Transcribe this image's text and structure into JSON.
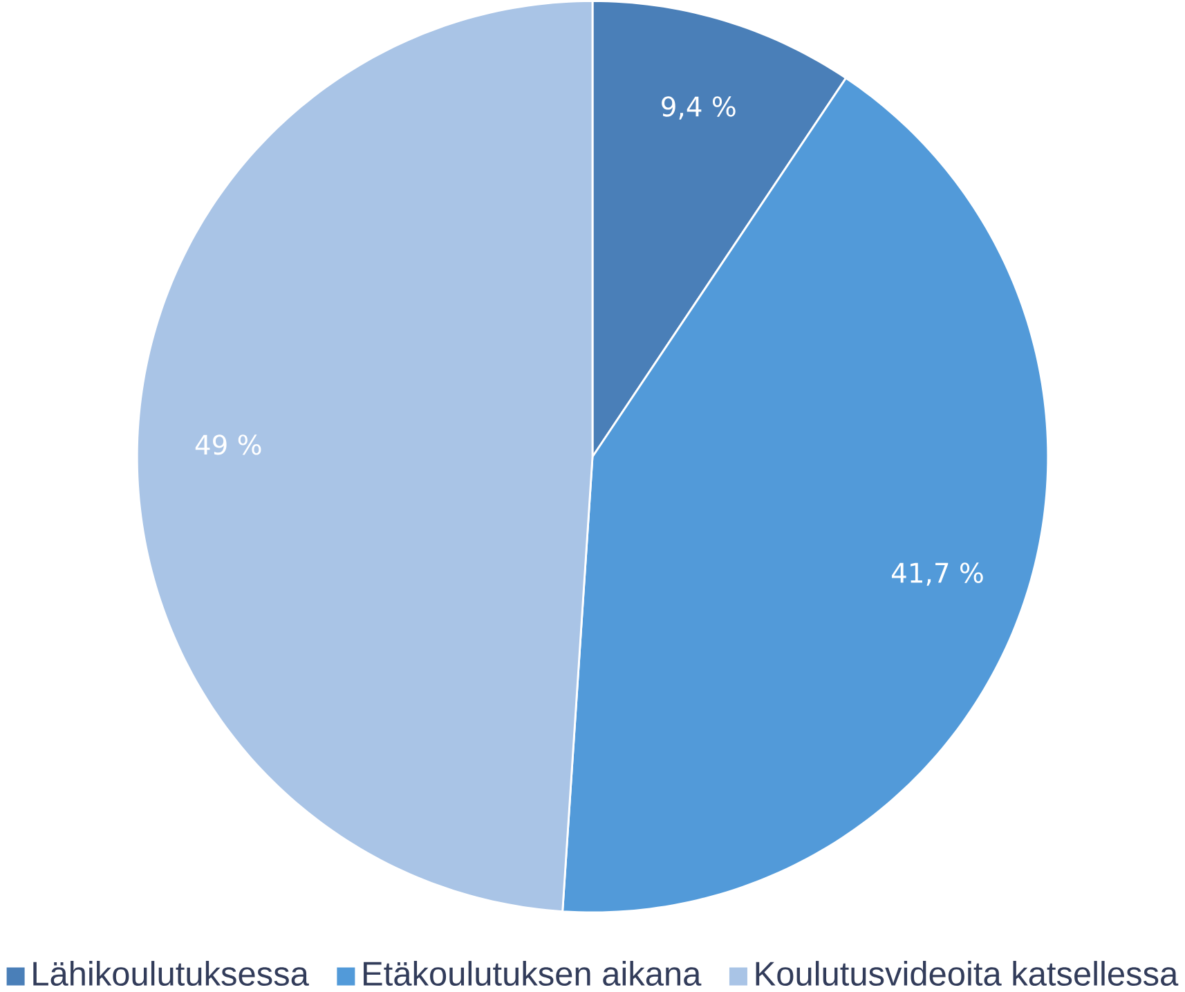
{
  "chart_data": {
    "type": "pie",
    "categories": [
      "Lähikoulutuksessa",
      "Etäkoulutuksen aikana",
      "Koulutusvideoita katsellessa"
    ],
    "values": [
      9.4,
      41.7,
      49
    ],
    "value_labels": [
      "9,4 %",
      "41,7 %",
      "49 %"
    ],
    "colors": [
      "#4a7fb8",
      "#529ad9",
      "#a9c4e6"
    ],
    "legend": "bottom"
  }
}
